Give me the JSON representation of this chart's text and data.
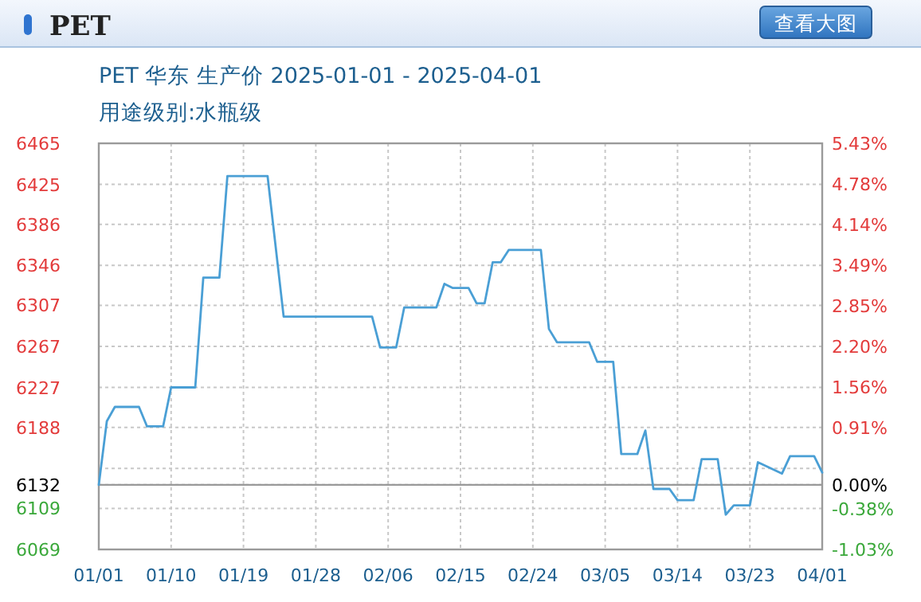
{
  "chart_data": {
    "type": "line",
    "title": "PET",
    "subtitle": "PET 华东 生产价 2025-01-01 - 2025-04-01",
    "annotations": [
      "用途级别:水瓶级",
      "查看大图"
    ],
    "x": [
      "2025-01-01",
      "2025-01-02",
      "2025-01-03",
      "2025-01-06",
      "2025-01-07",
      "2025-01-09",
      "2025-01-10",
      "2025-01-13",
      "2025-01-14",
      "2025-01-16",
      "2025-01-17",
      "2025-01-22",
      "2025-01-24",
      "2025-02-04",
      "2025-02-05",
      "2025-02-07",
      "2025-02-08",
      "2025-02-12",
      "2025-02-13",
      "2025-02-14",
      "2025-02-16",
      "2025-02-17",
      "2025-02-18",
      "2025-02-19",
      "2025-02-20",
      "2025-02-21",
      "2025-02-25",
      "2025-02-26",
      "2025-02-27",
      "2025-03-03",
      "2025-03-04",
      "2025-03-06",
      "2025-03-07",
      "2025-03-09",
      "2025-03-10",
      "2025-03-11",
      "2025-03-13",
      "2025-03-14",
      "2025-03-16",
      "2025-03-17",
      "2025-03-19",
      "2025-03-20",
      "2025-03-21",
      "2025-03-23",
      "2025-03-24",
      "2025-03-27",
      "2025-03-28",
      "2025-03-31",
      "2025-04-01"
    ],
    "values": [
      6132,
      6194,
      6208,
      6208,
      6189,
      6189,
      6227,
      6227,
      6334,
      6334,
      6433,
      6433,
      6296,
      6296,
      6266,
      6266,
      6305,
      6305,
      6328,
      6324,
      6324,
      6309,
      6309,
      6349,
      6349,
      6361,
      6361,
      6284,
      6271,
      6271,
      6252,
      6252,
      6162,
      6162,
      6185,
      6128,
      6128,
      6117,
      6117,
      6157,
      6157,
      6103,
      6112,
      6112,
      6154,
      6143,
      6160,
      6160,
      6144
    ],
    "color": "#4a9fd5",
    "xlim": [
      "2025-01-01",
      "2025-04-01"
    ],
    "xticks": [
      {
        "value": "2025-01-01",
        "label": "01/01"
      },
      {
        "value": "2025-01-10",
        "label": "01/10"
      },
      {
        "value": "2025-01-19",
        "label": "01/19"
      },
      {
        "value": "2025-01-28",
        "label": "01/28"
      },
      {
        "value": "2025-02-06",
        "label": "02/06"
      },
      {
        "value": "2025-02-15",
        "label": "02/15"
      },
      {
        "value": "2025-02-24",
        "label": "02/24"
      },
      {
        "value": "2025-03-05",
        "label": "03/05"
      },
      {
        "value": "2025-03-14",
        "label": "03/14"
      },
      {
        "value": "2025-03-23",
        "label": "03/23"
      },
      {
        "value": "2025-04-01",
        "label": "04/01"
      }
    ],
    "ylim": [
      6069,
      6465
    ],
    "yticks": [
      6069,
      6109,
      6132,
      {
        "value": 6148,
        "label": null
      },
      6188,
      6227,
      6267,
      6307,
      6346,
      6386,
      6425,
      6465
    ],
    "y2lim": [
      -1.03,
      5.43
    ],
    "y2ticks": [
      {
        "value": -1.03,
        "label": "-1.03%"
      },
      {
        "value": -0.38,
        "label": "-0.38%"
      },
      {
        "value": 0,
        "label": "0.00%"
      },
      {
        "value": 0.91,
        "label": "0.91%"
      },
      {
        "value": 1.56,
        "label": "1.56%"
      },
      {
        "value": 2.2,
        "label": "2.20%"
      },
      {
        "value": 2.85,
        "label": "2.85%"
      },
      {
        "value": 3.49,
        "label": "3.49%"
      },
      {
        "value": 4.14,
        "label": "4.14%"
      },
      {
        "value": 4.78,
        "label": "4.78%"
      },
      {
        "value": 5.43,
        "label": "5.43%"
      }
    ],
    "ref_lines": [
      {
        "axis": "y",
        "value": 6132,
        "color": "#999999"
      }
    ],
    "grid": true,
    "marker": "none",
    "line_style": "solid"
  }
}
